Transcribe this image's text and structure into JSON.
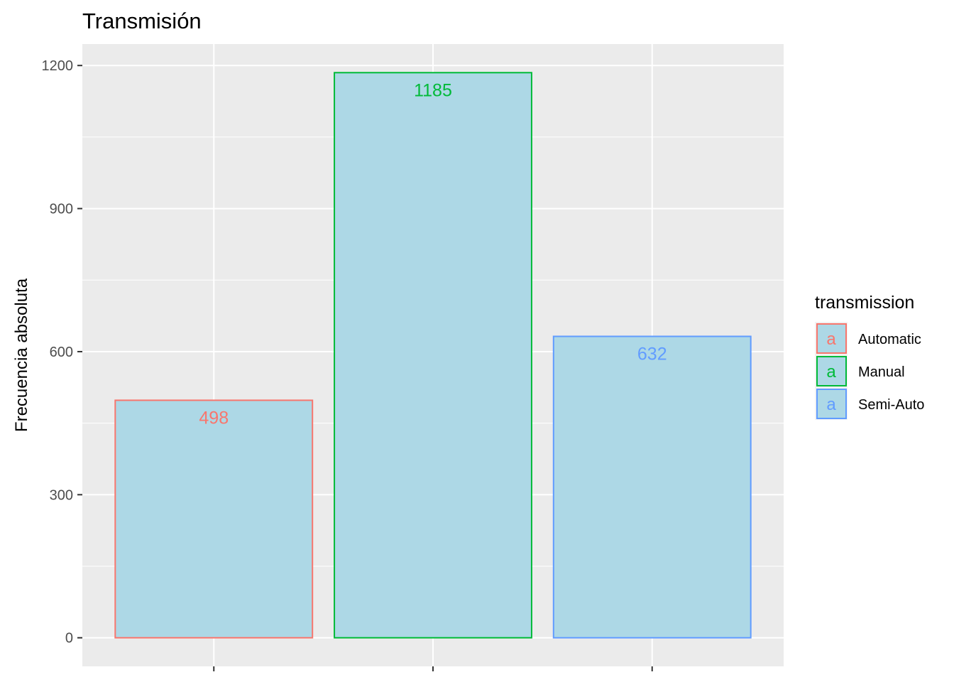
{
  "chart_data": {
    "type": "bar",
    "title": "Transmisión",
    "xlabel": "",
    "ylabel": "Frecuencia absoluta",
    "categories": [
      "Automatic",
      "Manual",
      "Semi-Auto"
    ],
    "values": [
      498,
      1185,
      632
    ],
    "data_labels": [
      "498",
      "1185",
      "632"
    ],
    "ylim": [
      -60,
      1245
    ],
    "yticks": [
      0,
      300,
      600,
      900,
      1200
    ],
    "ytick_labels": [
      "0",
      "300",
      "600",
      "900",
      "1200"
    ],
    "x_tick_labels_shown": false,
    "grid": true,
    "bar_fill": "#add8e6",
    "panel_background": "#ebebeb",
    "grid_color": "#ffffff",
    "series_colors": [
      "#f8766d",
      "#00ba38",
      "#619cff"
    ],
    "legend": {
      "title": "transmission",
      "placement": "right",
      "key_glyph": "a",
      "entries": [
        "Automatic",
        "Manual",
        "Semi-Auto"
      ]
    }
  }
}
